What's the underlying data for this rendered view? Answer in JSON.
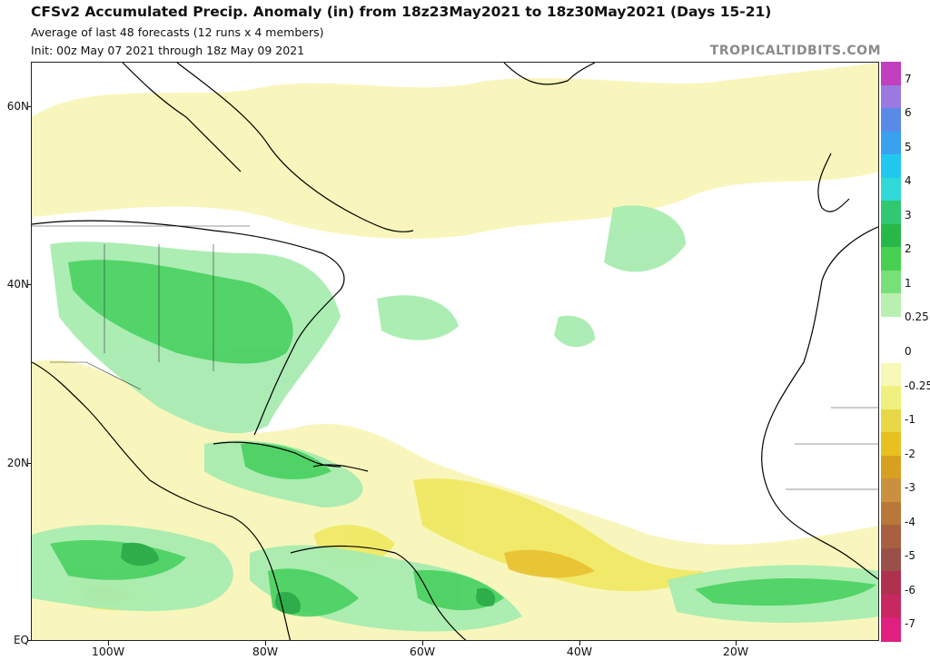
{
  "header": {
    "title": "CFSv2 Accumulated Precip. Anomaly (in) from 18z23May2021 to 18z30May2021 (Days 15-21)",
    "subtitle": "Average of last 48 forecasts (12 runs x 4 members)",
    "init": "Init: 00z May 07 2021 through 18z May 09 2021",
    "brand": "TROPICALTIDBITS.COM"
  },
  "axes": {
    "lat_labels": [
      "60N",
      "40N",
      "20N",
      "EQ"
    ],
    "lon_labels": [
      "100W",
      "80W",
      "60W",
      "40W",
      "20W"
    ]
  },
  "colorbar": {
    "labels": [
      "7",
      "6",
      "5",
      "4",
      "3",
      "2",
      "1",
      "0.25",
      "0",
      "-0.25",
      "-1",
      "-2",
      "-3",
      "-4",
      "-5",
      "-6",
      "-7"
    ],
    "colors": [
      "#c040c0",
      "#9a7ae0",
      "#5a8ae8",
      "#3aa0f0",
      "#20c8f0",
      "#30d8d8",
      "#30c870",
      "#28b848",
      "#48d050",
      "#78e078",
      "#b8f0b0",
      "#ffffff",
      "#ffffff",
      "#f8f8b8",
      "#f0f080",
      "#e8d848",
      "#e8c020",
      "#d8a020",
      "#c89040",
      "#b87838",
      "#a86040",
      "#985048",
      "#b03050",
      "#c82860",
      "#e02080"
    ]
  }
}
